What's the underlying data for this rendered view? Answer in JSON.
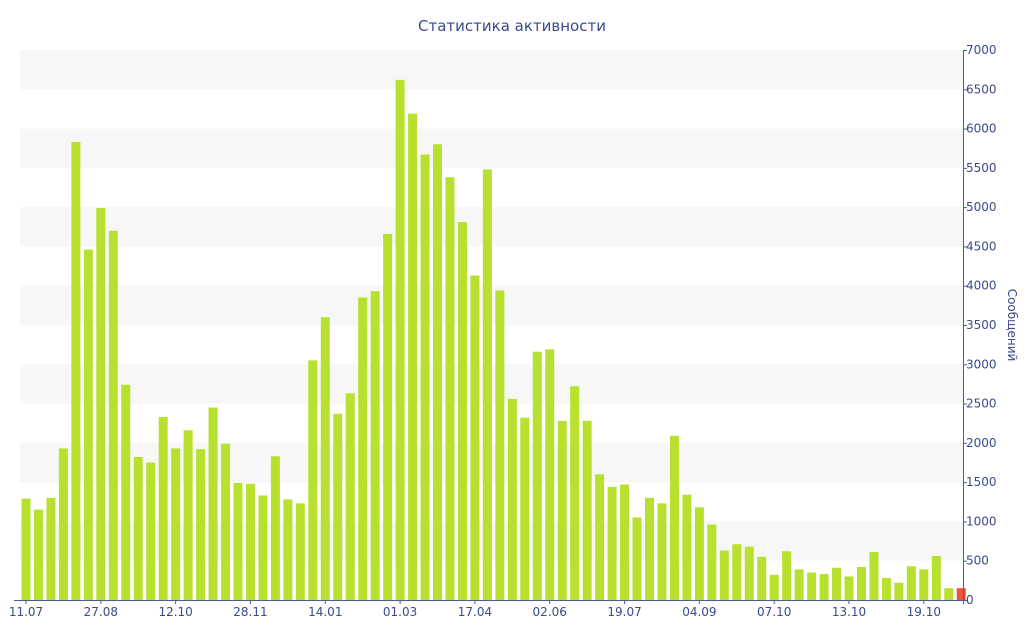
{
  "chart_data": {
    "type": "bar",
    "title": "Статистика активности",
    "ylabel": "Сообщений",
    "ylim": [
      0,
      7000
    ],
    "yticks": [
      0,
      500,
      1000,
      1500,
      2000,
      2500,
      3000,
      3500,
      4000,
      4500,
      5000,
      5500,
      6000,
      6500,
      7000
    ],
    "x_tick_labels": [
      {
        "index": 0,
        "label": "11.07"
      },
      {
        "index": 6,
        "label": "27.08"
      },
      {
        "index": 12,
        "label": "12.10"
      },
      {
        "index": 18,
        "label": "28.11"
      },
      {
        "index": 24,
        "label": "14.01"
      },
      {
        "index": 30,
        "label": "01.03"
      },
      {
        "index": 36,
        "label": "17.04"
      },
      {
        "index": 42,
        "label": "02.06"
      },
      {
        "index": 48,
        "label": "19.07"
      },
      {
        "index": 54,
        "label": "04.09"
      },
      {
        "index": 60,
        "label": "07.10"
      },
      {
        "index": 66,
        "label": "13.10"
      },
      {
        "index": 72,
        "label": "19.10"
      }
    ],
    "values": [
      1290,
      1150,
      1300,
      1930,
      5830,
      4460,
      4990,
      4700,
      2740,
      1820,
      1750,
      2330,
      1930,
      2160,
      1920,
      2450,
      1990,
      1490,
      1480,
      1330,
      1830,
      1280,
      1230,
      3050,
      3600,
      2370,
      2630,
      3850,
      3930,
      4660,
      6620,
      6190,
      5670,
      5800,
      5380,
      4810,
      4130,
      5480,
      3940,
      2560,
      2320,
      3160,
      3190,
      2280,
      2720,
      2280,
      1600,
      1440,
      1470,
      1050,
      1300,
      1230,
      2090,
      1340,
      1180,
      960,
      630,
      710,
      680,
      550,
      320,
      620,
      390,
      350,
      330,
      410,
      300,
      420,
      610,
      280,
      220,
      430,
      390,
      560,
      150,
      150
    ],
    "colors": {
      "bar": "#b8e02e",
      "last_bar": "#e8553a",
      "axis": "#4a5a9a",
      "text": "#3a4a8a",
      "band": "#f7f7f7"
    },
    "grid": "alternating-bands",
    "y_axis_side": "right"
  }
}
